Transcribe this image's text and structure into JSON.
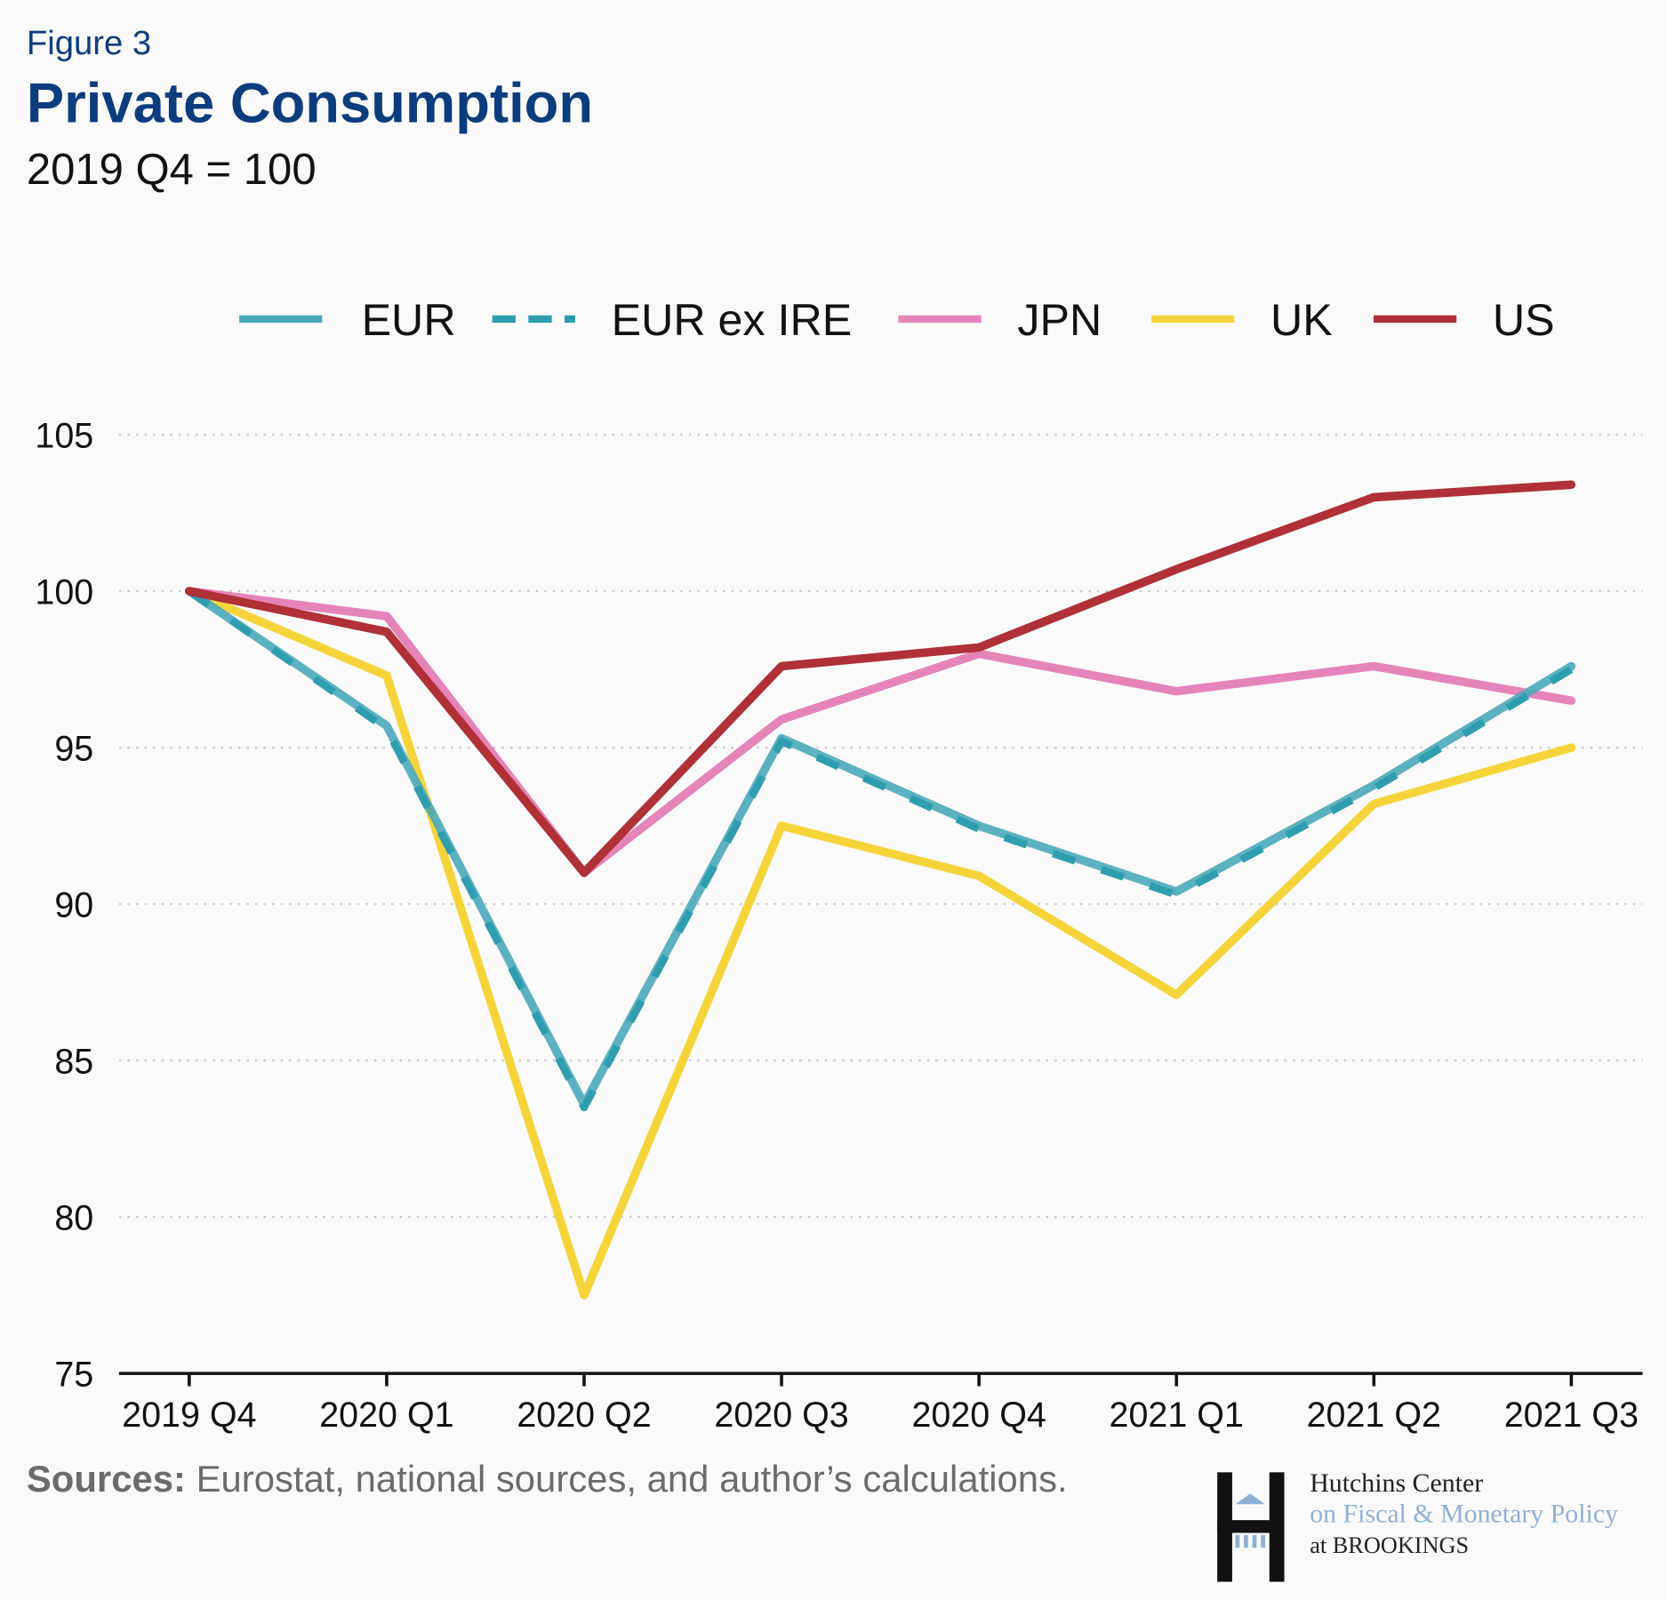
{
  "header": {
    "figure_label": "Figure 3",
    "title": "Private Consumption",
    "subtitle": "2019 Q4 = 100"
  },
  "footer": {
    "sources_label": "Sources:",
    "sources_text": " Eurostat, national sources, and author’s calculations.",
    "logo": {
      "line1": "Hutchins Center",
      "line2": "on Fiscal & Monetary Policy",
      "line3": "at BROOKINGS"
    }
  },
  "colors": {
    "title": "#0b3d7e",
    "EUR": "#4aa8b9",
    "EUR ex IRE": "#2e9db0",
    "JPN": "#e584b8",
    "UK": "#f5d43a",
    "US": "#b03037"
  },
  "chart_data": {
    "type": "line",
    "title": "Private Consumption",
    "subtitle": "2019 Q4 = 100",
    "xlabel": "",
    "ylabel": "",
    "categories": [
      "2019 Q4",
      "2020 Q1",
      "2020 Q2",
      "2020 Q3",
      "2020 Q4",
      "2021 Q1",
      "2021 Q2",
      "2021 Q3"
    ],
    "yticks": [
      "75",
      "80",
      "85",
      "90",
      "95",
      "100",
      "105"
    ],
    "ylim": [
      75,
      106
    ],
    "grid": "horizontal dotted",
    "legend_position": "top",
    "series": [
      {
        "name": "EUR",
        "style": "solid",
        "values": [
          100,
          95.7,
          83.6,
          95.3,
          92.5,
          90.4,
          93.8,
          97.6
        ]
      },
      {
        "name": "EUR ex IRE",
        "style": "dashed",
        "values": [
          100,
          95.6,
          83.5,
          95.2,
          92.4,
          90.3,
          93.7,
          97.5
        ]
      },
      {
        "name": "JPN",
        "style": "solid",
        "values": [
          100,
          99.2,
          91.0,
          95.9,
          98.0,
          96.8,
          97.6,
          96.5
        ]
      },
      {
        "name": "UK",
        "style": "solid",
        "values": [
          100,
          97.3,
          77.5,
          92.5,
          90.9,
          87.1,
          93.2,
          95.0
        ]
      },
      {
        "name": "US",
        "style": "solid",
        "values": [
          100,
          98.7,
          91.0,
          97.6,
          98.2,
          100.7,
          103.0,
          103.4
        ]
      }
    ]
  }
}
